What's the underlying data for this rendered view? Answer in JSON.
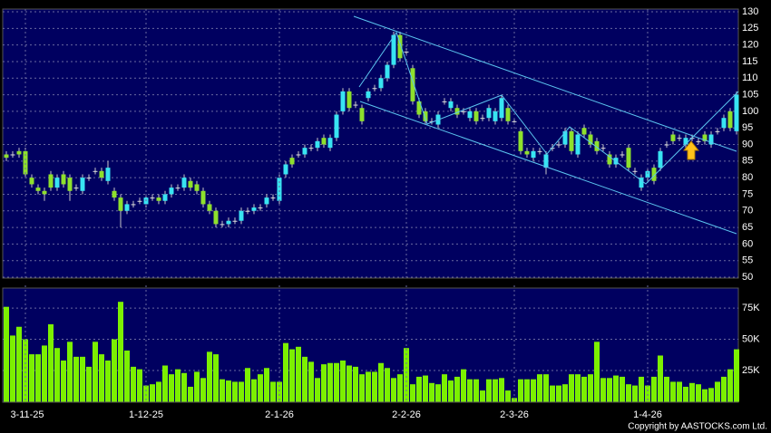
{
  "chart_data": [
    {
      "type": "candlestick",
      "up_color": "#38e4f2",
      "down_color": "#8ee02c",
      "grid": true,
      "ylim": [
        50,
        130
      ],
      "yticks": [
        50,
        55,
        60,
        65,
        70,
        75,
        80,
        85,
        90,
        95,
        100,
        105,
        110,
        115,
        120,
        125,
        130
      ],
      "open": [
        87,
        87,
        88,
        88,
        80,
        77,
        76,
        81,
        77,
        81,
        80,
        77,
        76,
        80,
        82,
        82,
        79,
        76,
        74,
        70,
        72,
        73,
        72,
        74,
        74,
        73,
        75,
        77,
        77,
        79,
        78,
        76,
        72,
        70,
        66,
        66,
        67,
        67,
        70,
        70,
        71,
        72,
        74,
        73,
        81,
        86,
        87,
        87,
        89,
        89,
        92,
        89,
        92,
        100,
        106,
        102,
        101,
        104,
        107,
        107,
        110,
        114,
        123,
        118,
        113,
        103,
        100,
        97,
        96,
        103,
        101,
        101,
        100,
        98,
        100,
        98,
        98,
        97,
        98,
        101,
        97,
        94,
        88,
        86,
        88,
        83,
        89,
        90,
        90,
        94,
        87,
        95,
        93,
        91,
        89,
        87,
        84,
        87,
        89,
        82,
        77,
        80,
        83,
        83,
        90,
        93,
        92,
        90,
        92,
        91,
        93,
        90,
        94,
        95,
        100,
        94
      ],
      "high": [
        88,
        88,
        89,
        89,
        81,
        78,
        77,
        82,
        81,
        82,
        81,
        78,
        81,
        81,
        83,
        83,
        85,
        77,
        75,
        73,
        73,
        74,
        75,
        75,
        75,
        76,
        78,
        78,
        81,
        80,
        79,
        77,
        73,
        71,
        67,
        68,
        68,
        71,
        71,
        72,
        72,
        75,
        75,
        81,
        85,
        87,
        88,
        90,
        90,
        92,
        93,
        93,
        100,
        107,
        107,
        103,
        102,
        107,
        108,
        111,
        115,
        124,
        124,
        119,
        114,
        104,
        101,
        98,
        100,
        104,
        104,
        102,
        101,
        101,
        101,
        99,
        102,
        101,
        105,
        102,
        98,
        95,
        89,
        89,
        89,
        88,
        90,
        91,
        95,
        95,
        94,
        96,
        94,
        92,
        90,
        88,
        87,
        88,
        90,
        83,
        81,
        83,
        84,
        89,
        91,
        94,
        93,
        93,
        93,
        92,
        94,
        94,
        95,
        99,
        101,
        106
      ],
      "low": [
        85,
        86,
        86,
        80,
        77,
        75,
        73,
        76,
        76,
        77,
        73,
        76,
        75,
        79,
        81,
        79,
        78,
        73,
        65,
        69,
        71,
        72,
        71,
        73,
        72,
        72,
        74,
        76,
        76,
        76,
        75,
        71,
        69,
        65,
        65,
        65,
        66,
        66,
        69,
        69,
        70,
        71,
        73,
        72,
        80,
        83,
        86,
        86,
        88,
        88,
        89,
        88,
        91,
        99,
        100,
        101,
        96,
        103,
        106,
        106,
        109,
        113,
        115,
        117,
        102,
        98,
        96,
        96,
        95,
        102,
        100,
        98,
        99,
        97,
        96,
        97,
        97,
        96,
        97,
        96,
        96,
        87,
        86,
        85,
        87,
        81,
        88,
        89,
        89,
        87,
        86,
        92,
        89,
        87,
        88,
        83,
        83,
        86,
        82,
        81,
        76,
        79,
        78,
        82,
        89,
        90,
        91,
        89,
        91,
        90,
        90,
        89,
        93,
        94,
        94,
        93
      ],
      "close": [
        86,
        87,
        87,
        81,
        78,
        76,
        75,
        77,
        80,
        78,
        76,
        77,
        80,
        80,
        82,
        80,
        83,
        74,
        70,
        72,
        72,
        73,
        74,
        74,
        73,
        75,
        77,
        77,
        80,
        77,
        76,
        72,
        70,
        66,
        66,
        67,
        67,
        70,
        70,
        71,
        71,
        74,
        74,
        80,
        84,
        84,
        87,
        89,
        89,
        91,
        90,
        92,
        99,
        106,
        101,
        102,
        97,
        106,
        107,
        110,
        114,
        123,
        116,
        118,
        103,
        99,
        97,
        97,
        99,
        103,
        103,
        99,
        100,
        100,
        97,
        98,
        101,
        100,
        104,
        97,
        97,
        88,
        87,
        88,
        88,
        87,
        89,
        90,
        94,
        88,
        93,
        93,
        90,
        88,
        89,
        84,
        86,
        87,
        83,
        82,
        80,
        82,
        79,
        88,
        90,
        91,
        92,
        92,
        92,
        91,
        91,
        93,
        94,
        98,
        95,
        105
      ]
    },
    {
      "type": "bar",
      "color": "#7cf000",
      "grid": true,
      "credit": "Copyright by AASTOCKS.com Ltd.",
      "ylim": [
        0,
        91000
      ],
      "yticks": [
        {
          "value": 25000,
          "label": "25K"
        },
        {
          "value": 50000,
          "label": "50K"
        },
        {
          "value": 75000,
          "label": "75K"
        }
      ],
      "categories": [
        null,
        null,
        null,
        "3-11-25",
        null,
        null,
        null,
        null,
        null,
        null,
        null,
        null,
        null,
        null,
        null,
        null,
        null,
        null,
        null,
        null,
        null,
        null,
        "1-12-25",
        null,
        null,
        null,
        null,
        null,
        null,
        null,
        null,
        null,
        null,
        null,
        null,
        null,
        null,
        null,
        null,
        null,
        null,
        null,
        null,
        "2-1-26",
        null,
        null,
        null,
        null,
        null,
        null,
        null,
        null,
        null,
        null,
        null,
        null,
        null,
        null,
        null,
        null,
        null,
        null,
        null,
        "2-2-26",
        null,
        null,
        null,
        null,
        null,
        null,
        null,
        null,
        null,
        null,
        null,
        null,
        null,
        null,
        null,
        null,
        "2-3-26",
        null,
        null,
        null,
        null,
        null,
        null,
        null,
        null,
        null,
        null,
        null,
        null,
        null,
        null,
        null,
        null,
        null,
        null,
        null,
        null,
        "1-4-26",
        null,
        null,
        null,
        null,
        null,
        null,
        null,
        null,
        null,
        null,
        null,
        null,
        null,
        null
      ],
      "values": [
        76000,
        53000,
        60000,
        50000,
        38000,
        38000,
        45000,
        62000,
        43000,
        33000,
        48000,
        36000,
        36000,
        28000,
        48000,
        38000,
        33000,
        50000,
        80000,
        41000,
        28000,
        26000,
        13000,
        14000,
        16000,
        29000,
        22000,
        26000,
        23000,
        12000,
        24000,
        19000,
        40000,
        38000,
        18000,
        17000,
        16000,
        16000,
        27000,
        18000,
        22000,
        27000,
        16000,
        16000,
        47000,
        42000,
        44000,
        36000,
        32000,
        19000,
        30000,
        31000,
        31000,
        33000,
        29000,
        28000,
        22000,
        24000,
        24000,
        31000,
        27000,
        19000,
        22000,
        43000,
        14000,
        20000,
        21000,
        15000,
        14000,
        22000,
        17000,
        20000,
        26000,
        18000,
        18000,
        9000,
        18000,
        18000,
        19000,
        9000,
        3000,
        18000,
        18000,
        18000,
        22000,
        22000,
        13000,
        13000,
        14000,
        22000,
        22000,
        20000,
        22000,
        48000,
        19000,
        19000,
        21000,
        20000,
        14000,
        13000,
        20000,
        13000,
        20000,
        37000,
        20000,
        16000,
        16000,
        12000,
        15000,
        14000,
        10000,
        11000,
        16000,
        20000,
        26000,
        42000
      ]
    }
  ]
}
